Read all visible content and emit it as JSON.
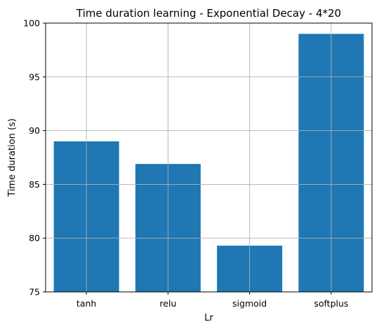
{
  "chart_data": {
    "type": "bar",
    "title": "Time duration learning - Exponential Decay - 4*20",
    "xlabel": "Lr",
    "ylabel": "Time duration (s)",
    "categories": [
      "tanh",
      "relu",
      "sigmoid",
      "softplus"
    ],
    "values": [
      89.0,
      86.9,
      79.3,
      99.0
    ],
    "ylim": [
      75,
      100
    ],
    "yticks": [
      75,
      80,
      85,
      90,
      95,
      100
    ],
    "grid": true,
    "bar_color": "#1f77b4"
  }
}
